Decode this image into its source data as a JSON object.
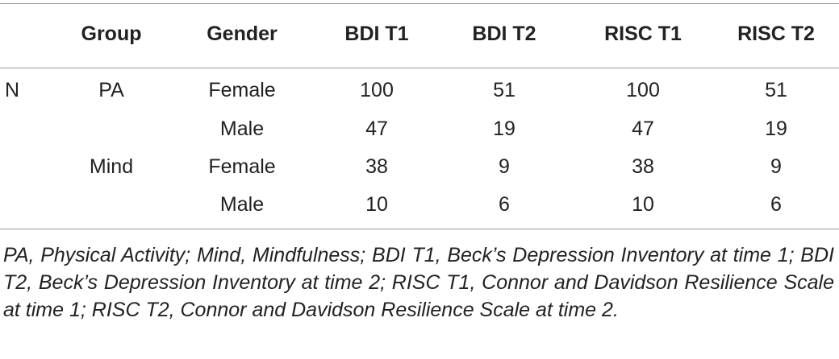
{
  "table": {
    "columns": [
      "Group",
      "Gender",
      "BDI T1",
      "BDI T2",
      "RISC T1",
      "RISC T2"
    ],
    "rows": [
      {
        "label": "N",
        "group": "PA",
        "gender": "Female",
        "values": [
          100,
          51,
          100,
          51
        ]
      },
      {
        "gender": "Male",
        "values": [
          47,
          19,
          47,
          19
        ]
      },
      {
        "group": "Mind",
        "gender": "Female",
        "values": [
          38,
          9,
          38,
          9
        ]
      },
      {
        "gender": "Male",
        "values": [
          10,
          6,
          10,
          6
        ]
      }
    ],
    "note": "PA, Physical Activity; Mind, Mindfulness; BDI T1, Beck’s Depression Inventory at time 1; BDI T2, Beck’s Depression Inventory at time 2; RISC T1, Connor and Davidson Resilience Scale at time 1; RISC T2, Connor and Davidson Resilience Scale at time 2."
  }
}
